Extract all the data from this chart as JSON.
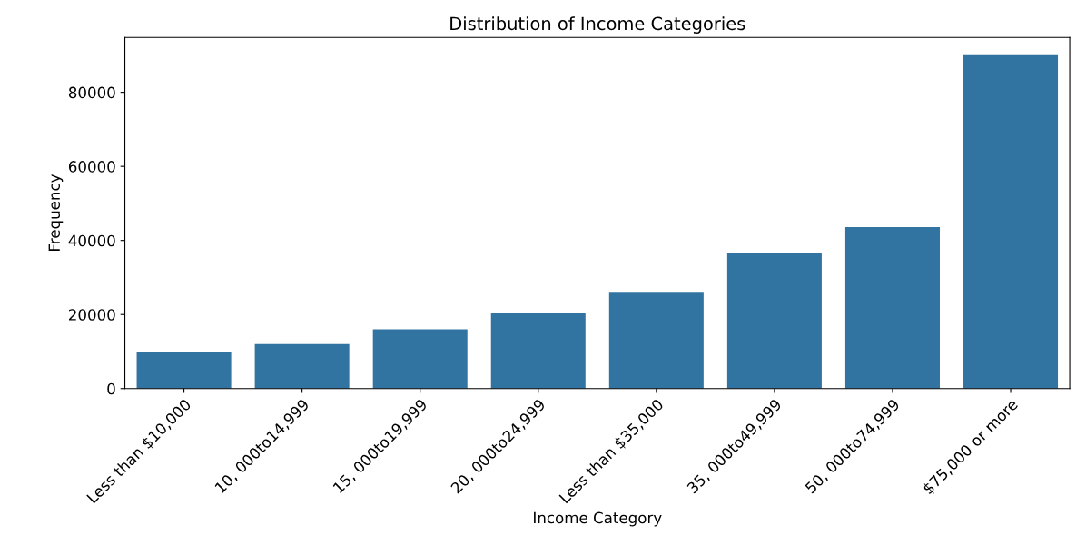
{
  "chart_data": {
    "type": "bar",
    "title": "Distribution of Income Categories",
    "xlabel": "Income Category",
    "ylabel": "Frequency",
    "categories": [
      "Less than $10,000",
      "10, 000to14,999",
      "15, 000to19,999",
      "20, 000to24,999",
      "Less than $35,000",
      "35, 000to49,999",
      "50, 000to74,999",
      "$75,000 or more"
    ],
    "values": [
      9800,
      12000,
      16000,
      20400,
      26100,
      36700,
      43600,
      90300
    ],
    "color": "#3274a1",
    "ylim": [
      0,
      94800
    ],
    "yticks": [
      0,
      20000,
      40000,
      60000,
      80000
    ],
    "grid": false
  }
}
